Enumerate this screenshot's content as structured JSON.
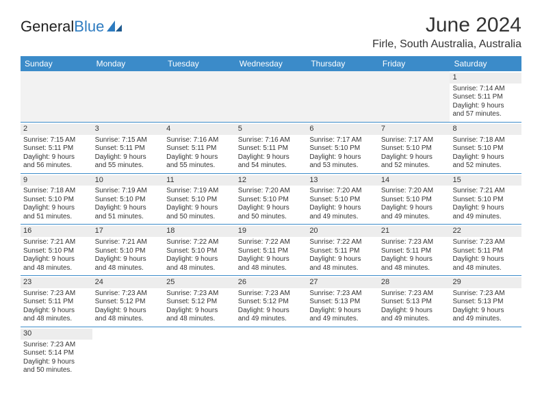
{
  "logo": {
    "text_a": "General",
    "text_b": "Blue"
  },
  "title": "June 2024",
  "location": "Firle, South Australia, Australia",
  "colors": {
    "header_bg": "#3b8bc9",
    "header_text": "#ffffff",
    "daynum_bg": "#ededed",
    "blank_bg": "#f2f2f2",
    "rule": "#3b8bc9",
    "text": "#333333",
    "logo_blue": "#2d7bc0"
  },
  "day_names": [
    "Sunday",
    "Monday",
    "Tuesday",
    "Wednesday",
    "Thursday",
    "Friday",
    "Saturday"
  ],
  "weeks": [
    [
      {
        "blank": true
      },
      {
        "blank": true
      },
      {
        "blank": true
      },
      {
        "blank": true
      },
      {
        "blank": true
      },
      {
        "blank": true
      },
      {
        "day": "1",
        "sunrise": "Sunrise: 7:14 AM",
        "sunset": "Sunset: 5:11 PM",
        "d1": "Daylight: 9 hours",
        "d2": "and 57 minutes."
      }
    ],
    [
      {
        "day": "2",
        "sunrise": "Sunrise: 7:15 AM",
        "sunset": "Sunset: 5:11 PM",
        "d1": "Daylight: 9 hours",
        "d2": "and 56 minutes."
      },
      {
        "day": "3",
        "sunrise": "Sunrise: 7:15 AM",
        "sunset": "Sunset: 5:11 PM",
        "d1": "Daylight: 9 hours",
        "d2": "and 55 minutes."
      },
      {
        "day": "4",
        "sunrise": "Sunrise: 7:16 AM",
        "sunset": "Sunset: 5:11 PM",
        "d1": "Daylight: 9 hours",
        "d2": "and 55 minutes."
      },
      {
        "day": "5",
        "sunrise": "Sunrise: 7:16 AM",
        "sunset": "Sunset: 5:11 PM",
        "d1": "Daylight: 9 hours",
        "d2": "and 54 minutes."
      },
      {
        "day": "6",
        "sunrise": "Sunrise: 7:17 AM",
        "sunset": "Sunset: 5:10 PM",
        "d1": "Daylight: 9 hours",
        "d2": "and 53 minutes."
      },
      {
        "day": "7",
        "sunrise": "Sunrise: 7:17 AM",
        "sunset": "Sunset: 5:10 PM",
        "d1": "Daylight: 9 hours",
        "d2": "and 52 minutes."
      },
      {
        "day": "8",
        "sunrise": "Sunrise: 7:18 AM",
        "sunset": "Sunset: 5:10 PM",
        "d1": "Daylight: 9 hours",
        "d2": "and 52 minutes."
      }
    ],
    [
      {
        "day": "9",
        "sunrise": "Sunrise: 7:18 AM",
        "sunset": "Sunset: 5:10 PM",
        "d1": "Daylight: 9 hours",
        "d2": "and 51 minutes."
      },
      {
        "day": "10",
        "sunrise": "Sunrise: 7:19 AM",
        "sunset": "Sunset: 5:10 PM",
        "d1": "Daylight: 9 hours",
        "d2": "and 51 minutes."
      },
      {
        "day": "11",
        "sunrise": "Sunrise: 7:19 AM",
        "sunset": "Sunset: 5:10 PM",
        "d1": "Daylight: 9 hours",
        "d2": "and 50 minutes."
      },
      {
        "day": "12",
        "sunrise": "Sunrise: 7:20 AM",
        "sunset": "Sunset: 5:10 PM",
        "d1": "Daylight: 9 hours",
        "d2": "and 50 minutes."
      },
      {
        "day": "13",
        "sunrise": "Sunrise: 7:20 AM",
        "sunset": "Sunset: 5:10 PM",
        "d1": "Daylight: 9 hours",
        "d2": "and 49 minutes."
      },
      {
        "day": "14",
        "sunrise": "Sunrise: 7:20 AM",
        "sunset": "Sunset: 5:10 PM",
        "d1": "Daylight: 9 hours",
        "d2": "and 49 minutes."
      },
      {
        "day": "15",
        "sunrise": "Sunrise: 7:21 AM",
        "sunset": "Sunset: 5:10 PM",
        "d1": "Daylight: 9 hours",
        "d2": "and 49 minutes."
      }
    ],
    [
      {
        "day": "16",
        "sunrise": "Sunrise: 7:21 AM",
        "sunset": "Sunset: 5:10 PM",
        "d1": "Daylight: 9 hours",
        "d2": "and 48 minutes."
      },
      {
        "day": "17",
        "sunrise": "Sunrise: 7:21 AM",
        "sunset": "Sunset: 5:10 PM",
        "d1": "Daylight: 9 hours",
        "d2": "and 48 minutes."
      },
      {
        "day": "18",
        "sunrise": "Sunrise: 7:22 AM",
        "sunset": "Sunset: 5:10 PM",
        "d1": "Daylight: 9 hours",
        "d2": "and 48 minutes."
      },
      {
        "day": "19",
        "sunrise": "Sunrise: 7:22 AM",
        "sunset": "Sunset: 5:11 PM",
        "d1": "Daylight: 9 hours",
        "d2": "and 48 minutes."
      },
      {
        "day": "20",
        "sunrise": "Sunrise: 7:22 AM",
        "sunset": "Sunset: 5:11 PM",
        "d1": "Daylight: 9 hours",
        "d2": "and 48 minutes."
      },
      {
        "day": "21",
        "sunrise": "Sunrise: 7:23 AM",
        "sunset": "Sunset: 5:11 PM",
        "d1": "Daylight: 9 hours",
        "d2": "and 48 minutes."
      },
      {
        "day": "22",
        "sunrise": "Sunrise: 7:23 AM",
        "sunset": "Sunset: 5:11 PM",
        "d1": "Daylight: 9 hours",
        "d2": "and 48 minutes."
      }
    ],
    [
      {
        "day": "23",
        "sunrise": "Sunrise: 7:23 AM",
        "sunset": "Sunset: 5:11 PM",
        "d1": "Daylight: 9 hours",
        "d2": "and 48 minutes."
      },
      {
        "day": "24",
        "sunrise": "Sunrise: 7:23 AM",
        "sunset": "Sunset: 5:12 PM",
        "d1": "Daylight: 9 hours",
        "d2": "and 48 minutes."
      },
      {
        "day": "25",
        "sunrise": "Sunrise: 7:23 AM",
        "sunset": "Sunset: 5:12 PM",
        "d1": "Daylight: 9 hours",
        "d2": "and 48 minutes."
      },
      {
        "day": "26",
        "sunrise": "Sunrise: 7:23 AM",
        "sunset": "Sunset: 5:12 PM",
        "d1": "Daylight: 9 hours",
        "d2": "and 49 minutes."
      },
      {
        "day": "27",
        "sunrise": "Sunrise: 7:23 AM",
        "sunset": "Sunset: 5:13 PM",
        "d1": "Daylight: 9 hours",
        "d2": "and 49 minutes."
      },
      {
        "day": "28",
        "sunrise": "Sunrise: 7:23 AM",
        "sunset": "Sunset: 5:13 PM",
        "d1": "Daylight: 9 hours",
        "d2": "and 49 minutes."
      },
      {
        "day": "29",
        "sunrise": "Sunrise: 7:23 AM",
        "sunset": "Sunset: 5:13 PM",
        "d1": "Daylight: 9 hours",
        "d2": "and 49 minutes."
      }
    ],
    [
      {
        "day": "30",
        "sunrise": "Sunrise: 7:23 AM",
        "sunset": "Sunset: 5:14 PM",
        "d1": "Daylight: 9 hours",
        "d2": "and 50 minutes."
      },
      {
        "blank": true
      },
      {
        "blank": true
      },
      {
        "blank": true
      },
      {
        "blank": true
      },
      {
        "blank": true
      },
      {
        "blank": true
      }
    ]
  ]
}
